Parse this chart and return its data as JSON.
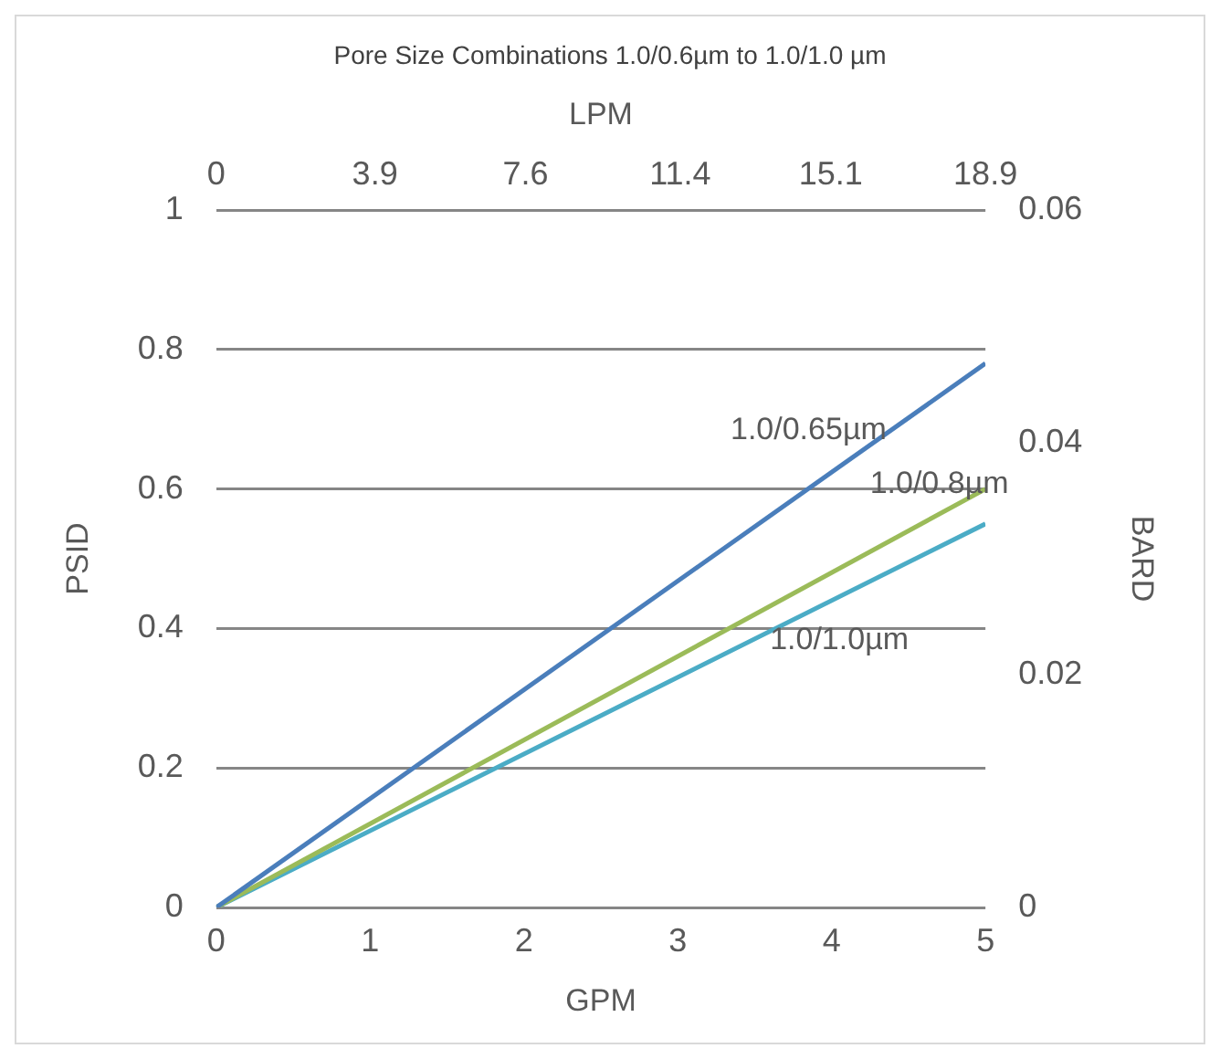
{
  "chart_data": {
    "type": "line",
    "title": "Pore Size Combinations 1.0/0.6µm to 1.0/1.0 µm",
    "xlabel": "GPM",
    "ylabel": "PSID",
    "y2label": "BARD",
    "x2label": "LPM",
    "x": [
      0,
      5
    ],
    "series": [
      {
        "name": "1.0/0.65µm",
        "color": "#4a7ebb",
        "values": [
          0,
          0.78
        ]
      },
      {
        "name": "1.0/0.8µm",
        "color": "#9bbb59",
        "values": [
          0,
          0.6
        ]
      },
      {
        "name": "1.0/1.0µm",
        "color": "#4bacc6",
        "values": [
          0,
          0.55
        ]
      }
    ],
    "xlim": [
      0,
      5
    ],
    "xticks": [
      0,
      1,
      2,
      3,
      4,
      5
    ],
    "ylim": [
      0,
      1
    ],
    "yticks": [
      0,
      0.2,
      0.4,
      0.6,
      0.8,
      1
    ],
    "y2lim": [
      0,
      0.06
    ],
    "y2ticks": [
      0,
      0.02,
      0.04,
      0.06
    ],
    "x2lim": [
      0,
      18.9
    ],
    "x2ticks": [
      0,
      3.9,
      7.6,
      11.4,
      15.1,
      18.9
    ],
    "grid": "y",
    "legend": false,
    "marker": "none",
    "line_style": "solid"
  }
}
